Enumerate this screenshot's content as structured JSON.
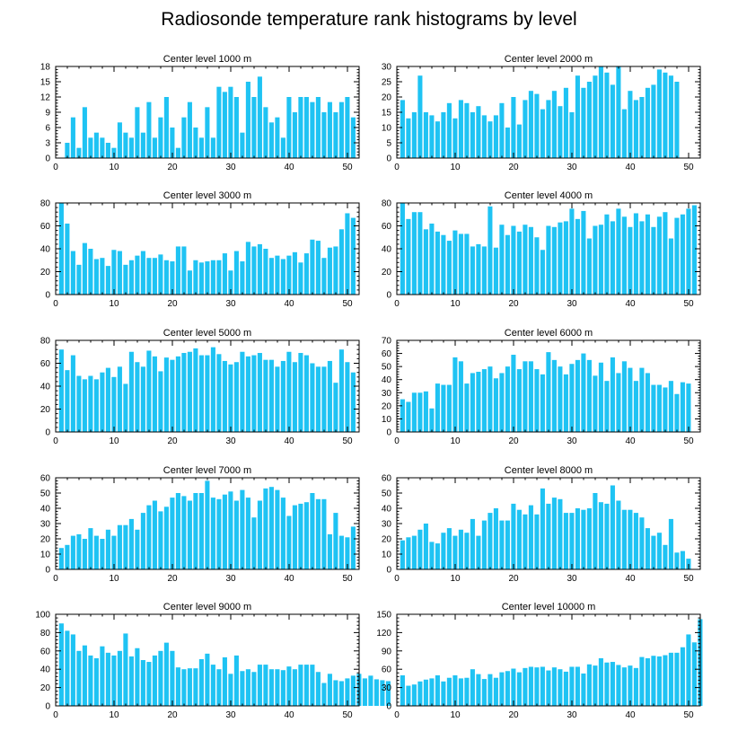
{
  "title": "Radiosonde temperature rank histograms by level",
  "colors": {
    "bar": "#1FC3F3",
    "axis": "#000000"
  },
  "chart_data": [
    {
      "type": "bar",
      "title": "Center level 1000 m",
      "x_ticks": [
        0,
        10,
        20,
        30,
        40,
        50
      ],
      "y_ticks": [
        0,
        3,
        6,
        9,
        12,
        15,
        18
      ],
      "ylim": [
        0,
        18
      ],
      "xlim": [
        0,
        52
      ],
      "values": [
        0,
        3,
        8,
        2,
        10,
        4,
        5,
        4,
        3,
        2,
        7,
        5,
        4,
        10,
        5,
        11,
        4,
        8,
        12,
        6,
        2,
        8,
        11,
        6,
        4,
        10,
        4,
        14,
        13,
        14,
        12,
        5,
        15,
        12,
        16,
        10,
        7,
        8,
        4,
        12,
        9,
        12,
        12,
        11,
        12,
        9,
        11,
        9,
        11,
        12,
        8
      ]
    },
    {
      "type": "bar",
      "title": "Center level 2000 m",
      "x_ticks": [
        0,
        10,
        20,
        30,
        40,
        50
      ],
      "y_ticks": [
        0,
        5,
        10,
        15,
        20,
        25,
        30
      ],
      "ylim": [
        0,
        30
      ],
      "xlim": [
        0,
        52
      ],
      "values": [
        19,
        13,
        15,
        27,
        15,
        14,
        12,
        15,
        18,
        13,
        19,
        18,
        15,
        17,
        14,
        12,
        14,
        18,
        10,
        20,
        11,
        19,
        22,
        21,
        16,
        19,
        22,
        17,
        23,
        15,
        27,
        23,
        25,
        27,
        30,
        28,
        24,
        30,
        16,
        22,
        19,
        20,
        23,
        24,
        29,
        28,
        27,
        25
      ]
    },
    {
      "type": "bar",
      "title": "Center level 3000 m",
      "x_ticks": [
        0,
        10,
        20,
        30,
        40,
        50
      ],
      "y_ticks": [
        0,
        20,
        40,
        60,
        80
      ],
      "ylim": [
        0,
        80
      ],
      "xlim": [
        0,
        52
      ],
      "values": [
        80,
        62,
        38,
        26,
        45,
        40,
        31,
        32,
        25,
        39,
        38,
        26,
        30,
        34,
        38,
        32,
        32,
        35,
        30,
        29,
        42,
        42,
        21,
        30,
        28,
        29,
        30,
        30,
        36,
        21,
        38,
        29,
        46,
        42,
        44,
        40,
        32,
        34,
        31,
        34,
        37,
        28,
        36,
        48,
        47,
        32,
        41,
        42,
        57,
        71,
        67
      ]
    },
    {
      "type": "bar",
      "title": "Center level 4000 m",
      "x_ticks": [
        0,
        10,
        20,
        30,
        40,
        50
      ],
      "y_ticks": [
        0,
        20,
        40,
        60,
        80
      ],
      "ylim": [
        0,
        80
      ],
      "xlim": [
        0,
        52
      ],
      "values": [
        80,
        66,
        72,
        72,
        57,
        62,
        55,
        52,
        47,
        56,
        53,
        53,
        42,
        44,
        42,
        77,
        41,
        61,
        52,
        60,
        55,
        61,
        59,
        50,
        39,
        60,
        59,
        63,
        64,
        75,
        66,
        73,
        49,
        60,
        61,
        70,
        64,
        75,
        68,
        59,
        71,
        64,
        70,
        59,
        68,
        72,
        49,
        67,
        70,
        75,
        78
      ]
    },
    {
      "type": "bar",
      "title": "Center level 5000 m",
      "x_ticks": [
        0,
        10,
        20,
        30,
        40,
        50
      ],
      "y_ticks": [
        0,
        20,
        40,
        60,
        80
      ],
      "ylim": [
        0,
        80
      ],
      "xlim": [
        0,
        52
      ],
      "values": [
        72,
        54,
        67,
        49,
        46,
        49,
        46,
        52,
        56,
        48,
        57,
        42,
        70,
        61,
        57,
        71,
        66,
        53,
        65,
        63,
        66,
        69,
        70,
        73,
        67,
        67,
        74,
        68,
        62,
        59,
        61,
        70,
        66,
        67,
        69,
        63,
        63,
        57,
        62,
        70,
        61,
        69,
        67,
        60,
        57,
        57,
        62,
        43,
        72,
        61,
        52
      ]
    },
    {
      "type": "bar",
      "title": "Center level 6000 m",
      "x_ticks": [
        0,
        10,
        20,
        30,
        40,
        50
      ],
      "y_ticks": [
        0,
        10,
        20,
        30,
        40,
        50,
        60,
        70
      ],
      "ylim": [
        0,
        70
      ],
      "xlim": [
        0,
        52
      ],
      "values": [
        25,
        23,
        30,
        30,
        31,
        18,
        37,
        36,
        36,
        57,
        54,
        37,
        45,
        46,
        48,
        50,
        41,
        45,
        50,
        59,
        48,
        54,
        54,
        48,
        44,
        61,
        55,
        50,
        44,
        52,
        55,
        60,
        55,
        43,
        53,
        39,
        57,
        45,
        54,
        49,
        39,
        49,
        45,
        36,
        36,
        34,
        39,
        29,
        38,
        37
      ]
    },
    {
      "type": "bar",
      "title": "Center level 7000 m",
      "x_ticks": [
        0,
        10,
        20,
        30,
        40,
        50
      ],
      "y_ticks": [
        0,
        10,
        20,
        30,
        40,
        50,
        60
      ],
      "ylim": [
        0,
        60
      ],
      "xlim": [
        0,
        52
      ],
      "values": [
        14,
        16,
        22,
        23,
        20,
        27,
        22,
        20,
        26,
        22,
        29,
        29,
        33,
        26,
        37,
        42,
        45,
        38,
        41,
        47,
        50,
        48,
        45,
        50,
        50,
        58,
        47,
        46,
        49,
        51,
        45,
        52,
        47,
        34,
        45,
        53,
        54,
        52,
        47,
        35,
        42,
        43,
        44,
        50,
        46,
        46,
        23,
        37,
        22,
        21,
        28
      ]
    },
    {
      "type": "bar",
      "title": "Center level 8000 m",
      "x_ticks": [
        0,
        10,
        20,
        30,
        40,
        50
      ],
      "y_ticks": [
        0,
        10,
        20,
        30,
        40,
        50,
        60
      ],
      "ylim": [
        0,
        60
      ],
      "xlim": [
        0,
        52
      ],
      "values": [
        19,
        21,
        22,
        26,
        30,
        18,
        17,
        24,
        27,
        22,
        26,
        24,
        33,
        22,
        32,
        37,
        40,
        32,
        32,
        43,
        39,
        36,
        42,
        36,
        53,
        43,
        47,
        46,
        37,
        37,
        40,
        39,
        40,
        50,
        44,
        43,
        55,
        45,
        39,
        39,
        37,
        34,
        27,
        22,
        24,
        16,
        33,
        11,
        12,
        7
      ]
    },
    {
      "type": "bar",
      "title": "Center level 9000 m",
      "x_ticks": [
        0,
        10,
        20,
        30,
        40,
        50
      ],
      "y_ticks": [
        0,
        20,
        40,
        60,
        80,
        100
      ],
      "ylim": [
        0,
        100
      ],
      "xlim": [
        0,
        52
      ],
      "values": [
        90,
        82,
        78,
        60,
        66,
        55,
        52,
        65,
        58,
        55,
        60,
        79,
        54,
        63,
        50,
        48,
        55,
        60,
        69,
        60,
        42,
        40,
        41,
        41,
        51,
        57,
        45,
        40,
        53,
        35,
        55,
        38,
        40,
        37,
        45,
        45,
        40,
        40,
        39,
        43,
        40,
        45,
        45,
        45,
        37,
        25,
        35,
        28,
        27,
        30,
        33,
        35,
        30,
        33,
        29,
        28,
        27
      ]
    },
    {
      "type": "bar",
      "title": "Center level 10000 m",
      "x_ticks": [
        0,
        10,
        20,
        30,
        40,
        50
      ],
      "y_ticks": [
        0,
        30,
        60,
        90,
        120,
        150
      ],
      "ylim": [
        0,
        150
      ],
      "xlim": [
        0,
        52
      ],
      "values": [
        50,
        33,
        35,
        40,
        43,
        45,
        50,
        40,
        46,
        50,
        45,
        46,
        60,
        52,
        44,
        52,
        46,
        55,
        57,
        61,
        55,
        62,
        64,
        63,
        64,
        58,
        63,
        60,
        56,
        64,
        64,
        53,
        68,
        66,
        78,
        71,
        72,
        67,
        63,
        66,
        62,
        80,
        78,
        82,
        81,
        83,
        87,
        87,
        96,
        117,
        104,
        142
      ]
    }
  ]
}
